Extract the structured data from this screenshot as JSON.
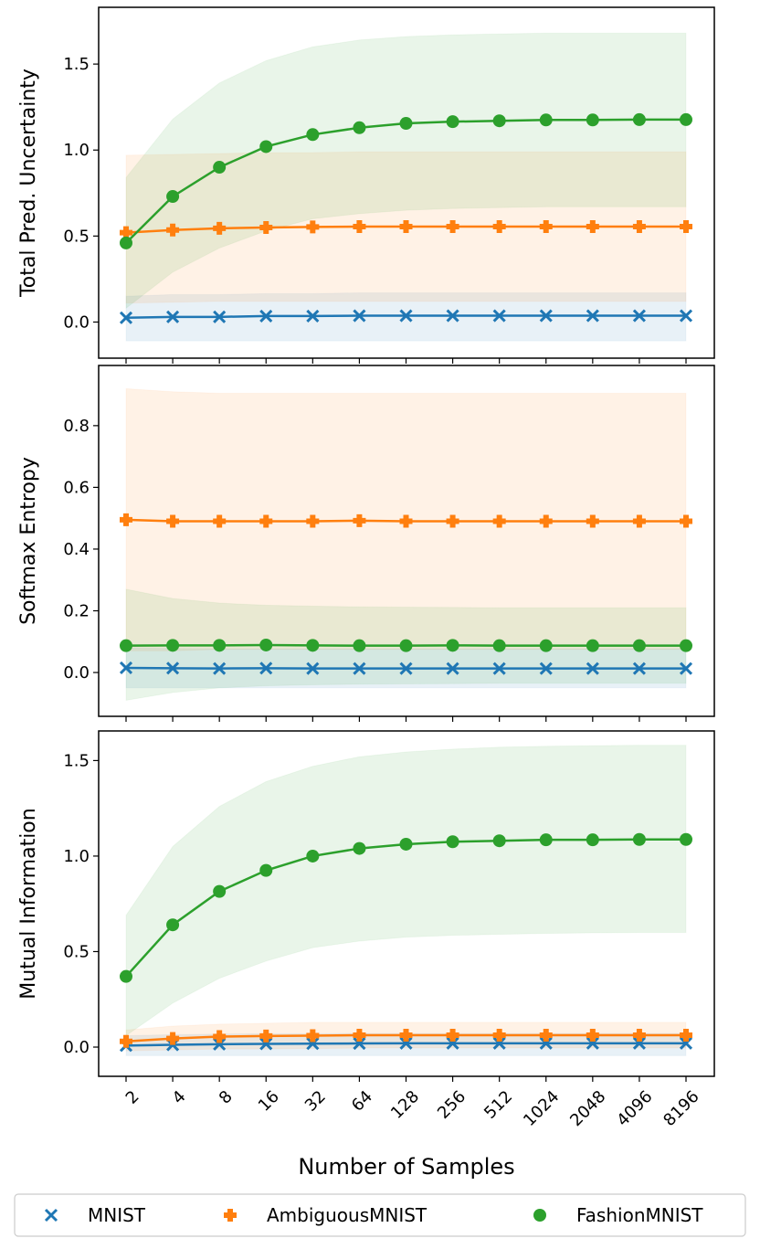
{
  "chart_data": {
    "type": "line",
    "x": [
      "2",
      "4",
      "8",
      "16",
      "32",
      "64",
      "128",
      "256",
      "512",
      "1024",
      "2048",
      "4096",
      "8196"
    ],
    "xlabel": "Number of Samples",
    "legend": {
      "placement": "bottom",
      "entries": [
        "MNIST",
        "AmbiguousMNIST",
        "FashionMNIST"
      ]
    },
    "colors": {
      "MNIST": "#1f77b4",
      "AmbiguousMNIST": "#ff7f0e",
      "FashionMNIST": "#2ca02c"
    },
    "markers": {
      "MNIST": "x",
      "AmbiguousMNIST": "plus",
      "FashionMNIST": "circle"
    },
    "grid": false,
    "panels": [
      {
        "ylabel": "Total Pred. Uncertainty",
        "ylim": [
          -0.21,
          1.83
        ],
        "yticks": [
          "0.0",
          "0.5",
          "1.0",
          "1.5"
        ],
        "series": [
          {
            "name": "MNIST",
            "values": [
              0.025,
              0.03,
              0.03,
              0.035,
              0.035,
              0.037,
              0.037,
              0.037,
              0.037,
              0.037,
              0.037,
              0.037,
              0.037
            ],
            "upper": [
              0.15,
              0.16,
              0.16,
              0.165,
              0.165,
              0.17,
              0.17,
              0.17,
              0.17,
              0.17,
              0.17,
              0.17,
              0.17
            ],
            "lower": [
              -0.11,
              -0.11,
              -0.11,
              -0.11,
              -0.11,
              -0.11,
              -0.11,
              -0.11,
              -0.11,
              -0.11,
              -0.11,
              -0.11,
              -0.11
            ]
          },
          {
            "name": "AmbiguousMNIST",
            "values": [
              0.52,
              0.535,
              0.545,
              0.55,
              0.553,
              0.555,
              0.555,
              0.555,
              0.555,
              0.555,
              0.555,
              0.555,
              0.555
            ],
            "upper": [
              0.97,
              0.975,
              0.98,
              0.985,
              0.985,
              0.99,
              0.99,
              0.99,
              0.99,
              0.99,
              0.99,
              0.99,
              0.99
            ],
            "lower": [
              0.11,
              0.115,
              0.12,
              0.12,
              0.12,
              0.12,
              0.12,
              0.12,
              0.12,
              0.12,
              0.12,
              0.12,
              0.12
            ]
          },
          {
            "name": "FashionMNIST",
            "values": [
              0.46,
              0.73,
              0.9,
              1.02,
              1.09,
              1.13,
              1.155,
              1.165,
              1.17,
              1.175,
              1.175,
              1.177,
              1.177
            ],
            "upper": [
              0.84,
              1.18,
              1.39,
              1.52,
              1.6,
              1.64,
              1.66,
              1.67,
              1.675,
              1.68,
              1.68,
              1.68,
              1.68
            ],
            "lower": [
              0.08,
              0.29,
              0.43,
              0.53,
              0.6,
              0.63,
              0.65,
              0.66,
              0.665,
              0.67,
              0.67,
              0.67,
              0.67
            ]
          }
        ]
      },
      {
        "ylabel": "Softmax Entropy",
        "ylim": [
          -0.142,
          0.995
        ],
        "yticks": [
          "0.0",
          "0.2",
          "0.4",
          "0.6",
          "0.8"
        ],
        "series": [
          {
            "name": "MNIST",
            "values": [
              0.015,
              0.014,
              0.013,
              0.014,
              0.013,
              0.013,
              0.013,
              0.013,
              0.013,
              0.013,
              0.013,
              0.013,
              0.013
            ],
            "upper": [
              0.08,
              0.078,
              0.077,
              0.077,
              0.077,
              0.077,
              0.077,
              0.077,
              0.077,
              0.077,
              0.077,
              0.077,
              0.077
            ],
            "lower": [
              -0.05,
              -0.05,
              -0.05,
              -0.05,
              -0.05,
              -0.05,
              -0.05,
              -0.05,
              -0.05,
              -0.05,
              -0.05,
              -0.05,
              -0.05
            ]
          },
          {
            "name": "AmbiguousMNIST",
            "values": [
              0.495,
              0.49,
              0.49,
              0.49,
              0.49,
              0.492,
              0.49,
              0.49,
              0.49,
              0.49,
              0.49,
              0.49,
              0.49
            ],
            "upper": [
              0.92,
              0.91,
              0.905,
              0.905,
              0.905,
              0.905,
              0.905,
              0.905,
              0.905,
              0.905,
              0.905,
              0.905,
              0.905
            ],
            "lower": [
              0.07,
              0.07,
              0.075,
              0.075,
              0.075,
              0.075,
              0.075,
              0.075,
              0.075,
              0.075,
              0.075,
              0.075,
              0.075
            ]
          },
          {
            "name": "FashionMNIST",
            "values": [
              0.087,
              0.088,
              0.088,
              0.089,
              0.088,
              0.087,
              0.087,
              0.088,
              0.087,
              0.087,
              0.087,
              0.087,
              0.087
            ],
            "upper": [
              0.27,
              0.24,
              0.225,
              0.218,
              0.215,
              0.213,
              0.212,
              0.211,
              0.21,
              0.21,
              0.21,
              0.21,
              0.21
            ],
            "lower": [
              -0.09,
              -0.065,
              -0.05,
              -0.043,
              -0.04,
              -0.038,
              -0.037,
              -0.036,
              -0.035,
              -0.035,
              -0.035,
              -0.035,
              -0.035
            ]
          }
        ]
      },
      {
        "ylabel": "Mutual Information",
        "ylim": [
          -0.153,
          1.655
        ],
        "yticks": [
          "0.0",
          "0.5",
          "1.0",
          "1.5"
        ],
        "series": [
          {
            "name": "MNIST",
            "values": [
              0.008,
              0.012,
              0.015,
              0.017,
              0.018,
              0.019,
              0.02,
              0.02,
              0.02,
              0.02,
              0.02,
              0.02,
              0.02
            ],
            "upper": [
              0.06,
              0.065,
              0.068,
              0.07,
              0.07,
              0.072,
              0.072,
              0.072,
              0.072,
              0.072,
              0.072,
              0.072,
              0.072
            ],
            "lower": [
              -0.045,
              -0.045,
              -0.045,
              -0.045,
              -0.045,
              -0.045,
              -0.045,
              -0.045,
              -0.045,
              -0.045,
              -0.045,
              -0.045,
              -0.045
            ]
          },
          {
            "name": "AmbiguousMNIST",
            "values": [
              0.03,
              0.045,
              0.055,
              0.058,
              0.06,
              0.062,
              0.062,
              0.062,
              0.062,
              0.062,
              0.062,
              0.062,
              0.062
            ],
            "upper": [
              0.09,
              0.11,
              0.12,
              0.125,
              0.13,
              0.13,
              0.13,
              0.13,
              0.13,
              0.13,
              0.13,
              0.13,
              0.13
            ],
            "lower": [
              -0.02,
              -0.015,
              -0.01,
              -0.01,
              -0.008,
              -0.005,
              -0.005,
              -0.005,
              -0.005,
              -0.005,
              -0.005,
              -0.005,
              -0.005
            ]
          },
          {
            "name": "FashionMNIST",
            "values": [
              0.37,
              0.64,
              0.815,
              0.925,
              1.0,
              1.04,
              1.062,
              1.075,
              1.08,
              1.085,
              1.085,
              1.087,
              1.087
            ],
            "upper": [
              0.69,
              1.05,
              1.26,
              1.39,
              1.47,
              1.52,
              1.545,
              1.56,
              1.57,
              1.575,
              1.578,
              1.58,
              1.58
            ],
            "lower": [
              0.06,
              0.23,
              0.36,
              0.45,
              0.52,
              0.555,
              0.575,
              0.585,
              0.59,
              0.595,
              0.598,
              0.6,
              0.6
            ]
          }
        ]
      }
    ]
  }
}
